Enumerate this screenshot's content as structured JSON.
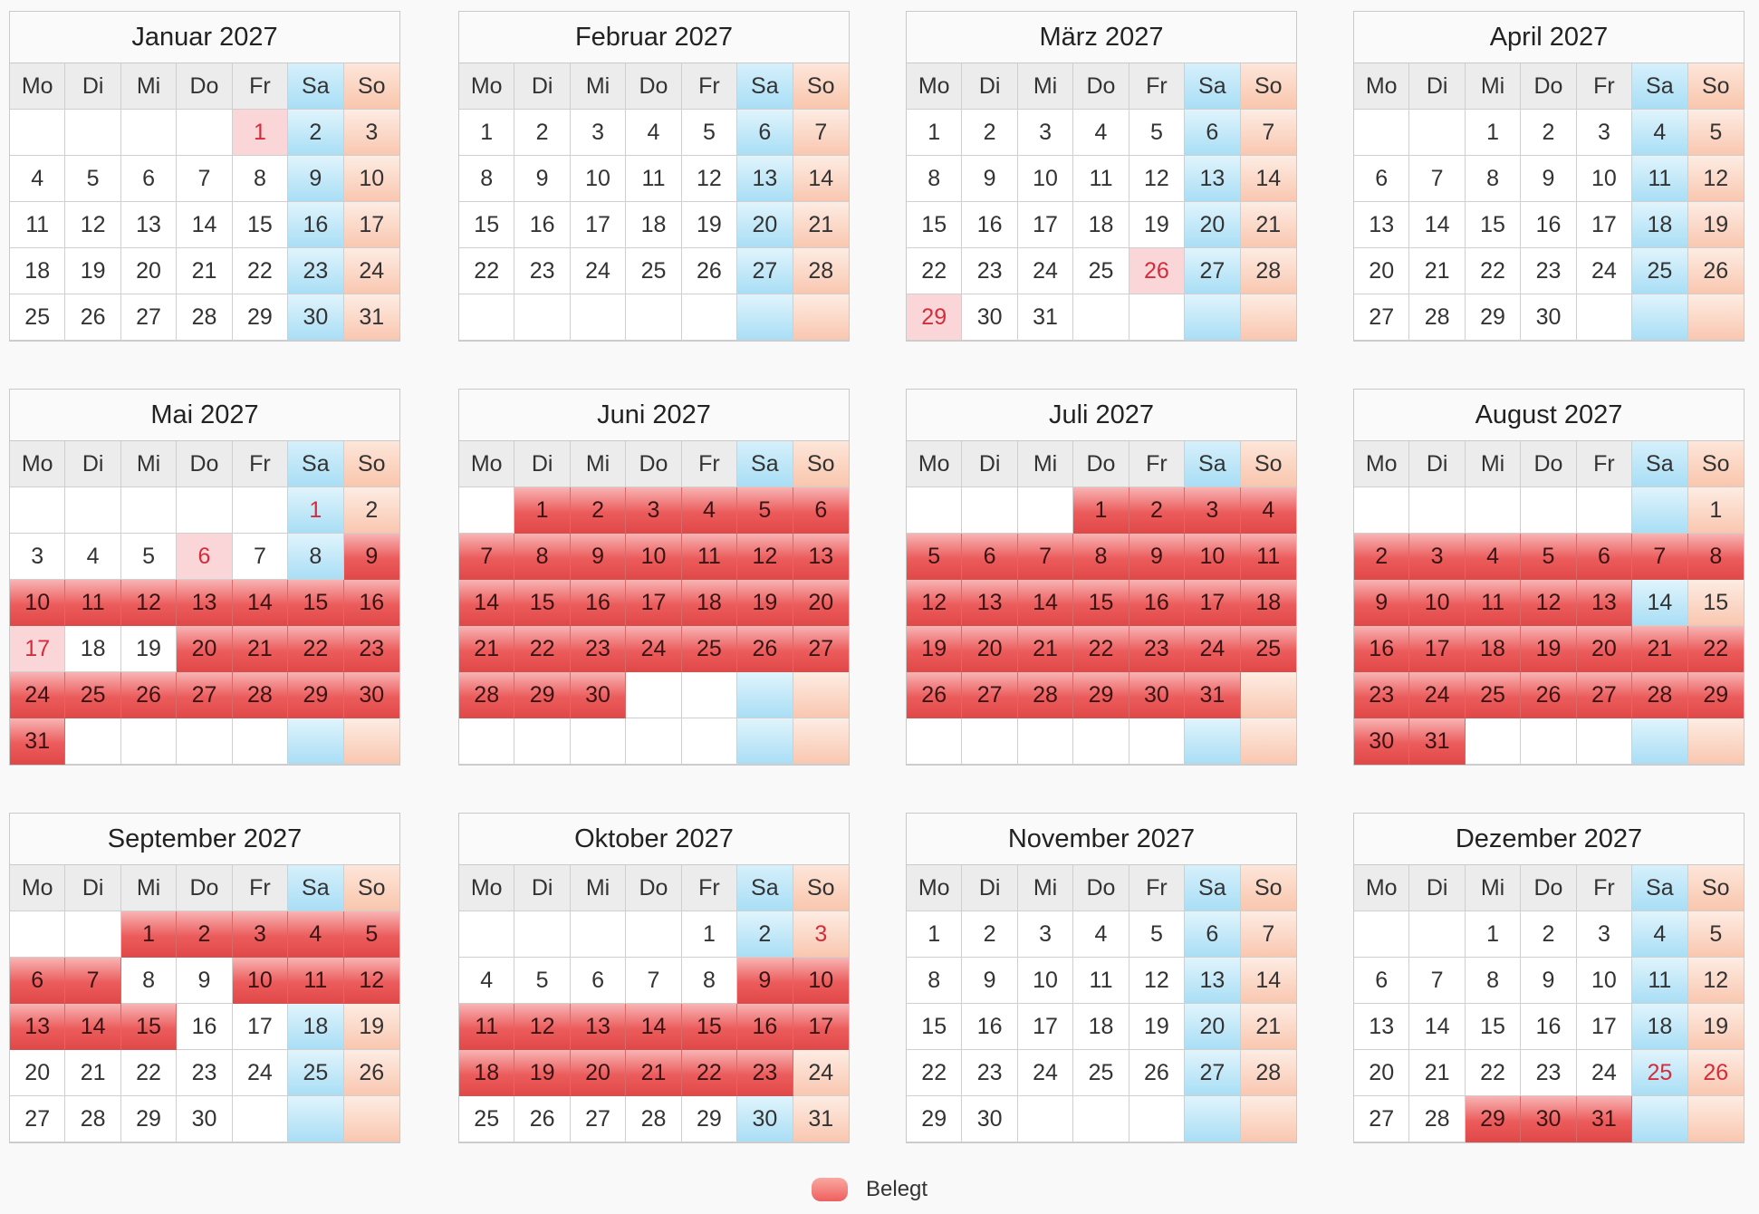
{
  "weekday_labels": [
    "Mo",
    "Di",
    "Mi",
    "Do",
    "Fr",
    "Sa",
    "So"
  ],
  "legend": {
    "label": "Belegt",
    "swatch_color": "#ef6a6a"
  },
  "colors": {
    "booked": "#ec5c5c",
    "saturday": "#a9def5",
    "sunday": "#f9c7b0",
    "holiday_text": "#d42c3a"
  },
  "months": [
    {
      "title": "Januar 2027",
      "offset": 4,
      "days": 31,
      "rows": 5,
      "booked": [],
      "holidays": [
        1
      ]
    },
    {
      "title": "Februar 2027",
      "offset": 0,
      "days": 28,
      "rows": 5,
      "booked": [],
      "holidays": []
    },
    {
      "title": "März 2027",
      "offset": 0,
      "days": 31,
      "rows": 5,
      "booked": [],
      "holidays": [
        26,
        29
      ]
    },
    {
      "title": "April 2027",
      "offset": 2,
      "days": 30,
      "rows": 5,
      "booked": [],
      "holidays": []
    },
    {
      "title": "Mai 2027",
      "offset": 5,
      "days": 31,
      "rows": 6,
      "booked": [
        9,
        10,
        11,
        12,
        13,
        14,
        15,
        16,
        20,
        21,
        22,
        23,
        24,
        25,
        26,
        27,
        28,
        29,
        30,
        31
      ],
      "holidays": [
        1,
        6,
        17
      ]
    },
    {
      "title": "Juni 2027",
      "offset": 1,
      "days": 30,
      "rows": 6,
      "booked": [
        1,
        2,
        3,
        4,
        5,
        6,
        7,
        8,
        9,
        10,
        11,
        12,
        13,
        14,
        15,
        16,
        17,
        18,
        19,
        20,
        21,
        22,
        23,
        24,
        25,
        26,
        27,
        28,
        29,
        30
      ],
      "holidays": []
    },
    {
      "title": "Juli 2027",
      "offset": 3,
      "days": 31,
      "rows": 6,
      "booked": [
        1,
        2,
        3,
        4,
        5,
        6,
        7,
        8,
        9,
        10,
        11,
        12,
        13,
        14,
        15,
        16,
        17,
        18,
        19,
        20,
        21,
        22,
        23,
        24,
        25,
        26,
        27,
        28,
        29,
        30,
        31
      ],
      "holidays": []
    },
    {
      "title": "August 2027",
      "offset": 6,
      "days": 31,
      "rows": 6,
      "booked": [
        2,
        3,
        4,
        5,
        6,
        7,
        8,
        9,
        10,
        11,
        12,
        13,
        16,
        17,
        18,
        19,
        20,
        21,
        22,
        23,
        24,
        25,
        26,
        27,
        28,
        29,
        30,
        31
      ],
      "holidays": []
    },
    {
      "title": "September 2027",
      "offset": 2,
      "days": 30,
      "rows": 5,
      "booked": [
        1,
        2,
        3,
        4,
        5,
        6,
        7,
        10,
        11,
        12,
        13,
        14,
        15
      ],
      "holidays": []
    },
    {
      "title": "Oktober 2027",
      "offset": 4,
      "days": 31,
      "rows": 5,
      "booked": [
        9,
        10,
        11,
        12,
        13,
        14,
        15,
        16,
        17,
        18,
        19,
        20,
        21,
        22,
        23
      ],
      "holidays": [
        3
      ]
    },
    {
      "title": "November 2027",
      "offset": 0,
      "days": 30,
      "rows": 5,
      "booked": [],
      "holidays": []
    },
    {
      "title": "Dezember 2027",
      "offset": 2,
      "days": 31,
      "rows": 5,
      "booked": [
        29,
        30,
        31
      ],
      "holidays": [
        25,
        26
      ]
    }
  ]
}
